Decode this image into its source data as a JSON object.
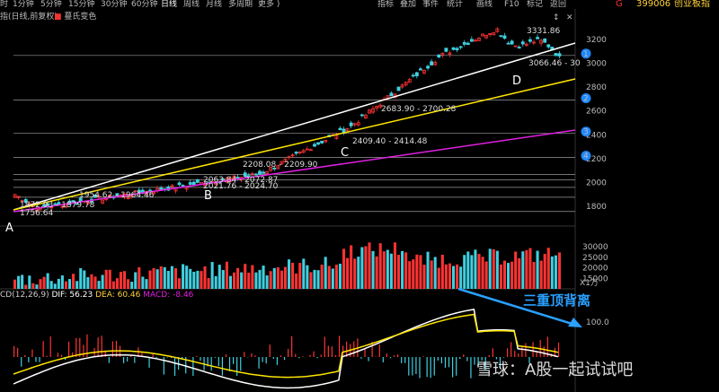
{
  "toolbar": {
    "periods": [
      "时",
      "1分钟",
      "5分钟",
      "15分钟",
      "30分钟",
      "60分钟",
      "日线",
      "周线",
      "月线",
      "多周期",
      "更多 )"
    ],
    "active_period": "日线",
    "tools": [
      "指标",
      "叠加",
      "事件",
      "统计",
      "画线",
      "F10",
      "标记",
      "返回"
    ]
  },
  "symbol": {
    "code": "399006",
    "name": "创业板指",
    "marker": "G"
  },
  "chart_label": "指(日线,前复权)",
  "color_mode": "蔓氏变色",
  "price_axis": [
    "3200",
    "3000",
    "2800",
    "2600",
    "2400",
    "2200",
    "2000",
    "1800"
  ],
  "price_labels": {
    "high": "3331.86",
    "low": "1756.64",
    "l1": "1872.93 - 1879.78",
    "l2": "1954.62 - 1964.46",
    "l3": "2021.76 - 2024.70",
    "l4": "2063.84 - 2072.87",
    "l5": "2208.08 - 2209.90",
    "l6": "2409.40 - 2414.48",
    "l7": "2683.90 - 2700.28",
    "l8": "3066.46 - 30"
  },
  "points": {
    "A": "A",
    "B": "B",
    "C": "C",
    "D": "D"
  },
  "markers": [
    "1",
    "2",
    "3",
    "4"
  ],
  "volume_axis": [
    "30000",
    "25000",
    "20000",
    "15000"
  ],
  "volume_unit": "X1万",
  "macd": {
    "name": "CD(12,26,9)",
    "dif": "DIF: 56.23",
    "dea": "DEA: 60.46",
    "macd": "MACD: -8.46",
    "axis": "100.0"
  },
  "annotation": "三重顶背离",
  "watermark": "雪球：A股一起试试吧",
  "colors": {
    "up": "#ff3333",
    "down": "#3fd0e0",
    "white_line": "#ffffff",
    "yellow_line": "#ffe600",
    "magenta_line": "#e020e0"
  }
}
